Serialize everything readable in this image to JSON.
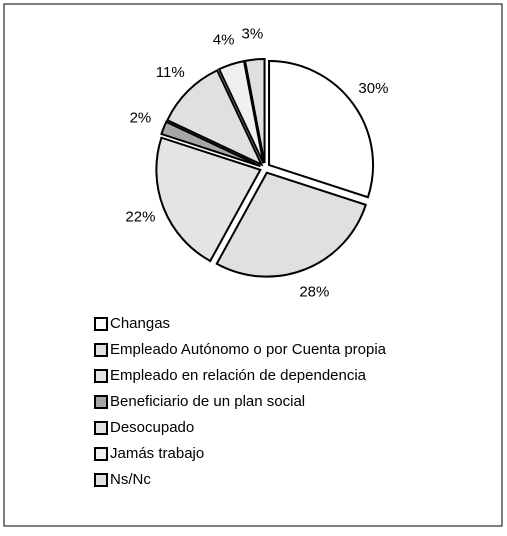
{
  "chart_data": {
    "type": "pie",
    "categories": [
      "Changas",
      "Empleado Autónomo o por Cuenta propia",
      "Empleado en relación de dependencia",
      "Beneficiario de un plan social",
      "Desocupado",
      "Jamás trabajo",
      "Ns/Nc"
    ],
    "values": [
      30,
      28,
      22,
      2,
      11,
      4,
      3
    ],
    "value_labels": [
      "30%",
      "28%",
      "22%",
      "2%",
      "11%",
      "4%",
      "3%"
    ],
    "colors": [
      "#ffffff",
      "#e0e0e0",
      "#e4e4e4",
      "#a6a6a6",
      "#e0e0e0",
      "#f0f0f0",
      "#e0e0e0"
    ]
  }
}
